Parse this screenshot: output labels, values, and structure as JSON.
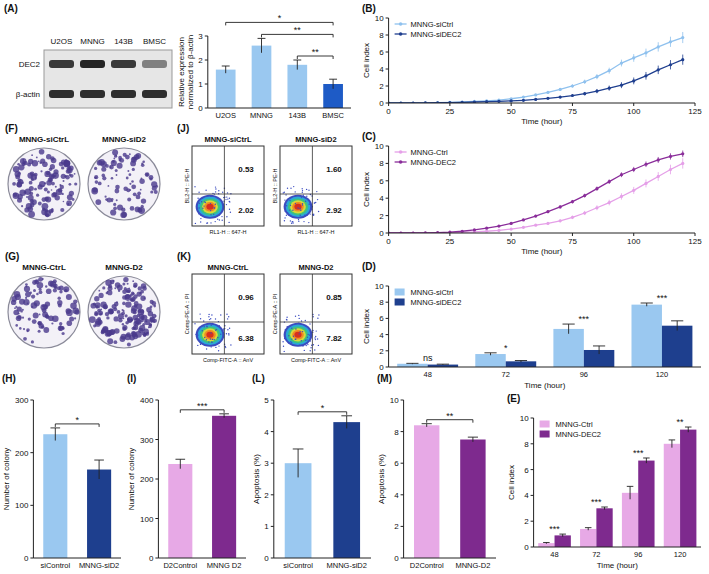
{
  "blot": {
    "panel": "(A)",
    "lanes": [
      "U2OS",
      "MNNG",
      "143B",
      "BMSC"
    ],
    "rows": [
      "DEC2",
      "β-actin"
    ]
  },
  "colony_images": [
    {
      "panel": "(F)",
      "labels": [
        "MNNG-siCtrL",
        "MNNG-siD2"
      ]
    },
    {
      "panel": "(G)",
      "labels": [
        "MNNG-CtrL",
        "MNNG-D2"
      ]
    }
  ],
  "flow_plots": [
    {
      "panel": "(J)",
      "x_label": "RL1-H :: 647-H",
      "y_label": "BL2-H :: PE-H",
      "plots": [
        {
          "title": "MNNG-siCtrL",
          "upper_right": "0.53",
          "lower_right": "2.02"
        },
        {
          "title": "MNNG-siD2",
          "upper_right": "1.60",
          "lower_right": "2.92"
        }
      ]
    },
    {
      "panel": "(K)",
      "x_label": "Comp-FITC-A :: AnV",
      "y_label": "Comp-PE-A :: PI",
      "plots": [
        {
          "title": "MNNG-CtrL",
          "upper_right": "0.96",
          "lower_right": "6.38"
        },
        {
          "title": "MNNG-D2",
          "upper_right": "0.85",
          "lower_right": "7.82"
        }
      ]
    }
  ],
  "chart_data": [
    {
      "type": "bar",
      "categories": [
        "U2OS",
        "MNNG",
        "143B",
        "BMSC"
      ],
      "values": [
        1.6,
        2.6,
        1.8,
        1.0
      ],
      "errors": [
        0.15,
        0.3,
        0.2,
        0.2
      ],
      "colors": [
        "#9ac8f0",
        "#9ac8f0",
        "#9ac8f0",
        "#1e5bc6"
      ],
      "y_label": "Relative expression normalized to β-actin",
      "ylim": [
        0,
        3
      ],
      "yticks": [
        0,
        1,
        2,
        3
      ],
      "grid": false,
      "annotations": [
        {
          "text": "*",
          "from": 0,
          "to": 3
        },
        {
          "text": "**",
          "from": 1,
          "to": 3
        },
        {
          "text": "**",
          "from": 2,
          "to": 3
        }
      ]
    },
    {
      "panel": "(B)",
      "type": "line",
      "x": [
        0,
        5,
        10,
        15,
        20,
        25,
        30,
        35,
        40,
        45,
        50,
        55,
        60,
        65,
        70,
        75,
        80,
        85,
        90,
        95,
        100,
        105,
        110,
        115,
        120
      ],
      "x_label": "Time (hour)",
      "y_label": "Cell index",
      "xlim": [
        0,
        125
      ],
      "xticks": [
        0,
        25,
        50,
        75,
        100,
        125
      ],
      "ylim": [
        0,
        10
      ],
      "yticks": [
        0,
        2,
        4,
        6,
        8,
        10
      ],
      "grid": false,
      "legend": "upper-left",
      "series": [
        {
          "name": "MNNG-siCtrl",
          "color": "#8fc1ee",
          "marker": "circle",
          "values": [
            0,
            0,
            0,
            0.02,
            0.05,
            0.08,
            0.12,
            0.18,
            0.25,
            0.35,
            0.5,
            0.7,
            0.95,
            1.25,
            1.6,
            2.0,
            2.5,
            3.1,
            3.8,
            4.7,
            5.3,
            5.9,
            6.6,
            7.2,
            7.7
          ],
          "errors": [
            0,
            0,
            0,
            0.01,
            0.02,
            0.03,
            0.04,
            0.05,
            0.06,
            0.07,
            0.08,
            0.1,
            0.12,
            0.14,
            0.16,
            0.2,
            0.25,
            0.3,
            0.35,
            0.4,
            0.45,
            0.5,
            0.55,
            0.6,
            0.65
          ]
        },
        {
          "name": "MNNG-siDEC2",
          "color": "#1f3f8f",
          "marker": "circle",
          "values": [
            0,
            0,
            0,
            0.01,
            0.03,
            0.05,
            0.08,
            0.12,
            0.16,
            0.2,
            0.25,
            0.32,
            0.42,
            0.55,
            0.7,
            0.88,
            1.1,
            1.4,
            1.75,
            2.1,
            2.6,
            3.2,
            3.9,
            4.5,
            5.1
          ],
          "errors": [
            0,
            0,
            0,
            0.01,
            0.01,
            0.02,
            0.03,
            0.04,
            0.05,
            0.06,
            0.07,
            0.08,
            0.1,
            0.12,
            0.14,
            0.16,
            0.2,
            0.25,
            0.3,
            0.35,
            0.4,
            0.45,
            0.5,
            0.55,
            0.6
          ]
        }
      ]
    },
    {
      "panel": "(C)",
      "type": "line",
      "x": [
        0,
        5,
        10,
        15,
        20,
        25,
        30,
        35,
        40,
        45,
        50,
        55,
        60,
        65,
        70,
        75,
        80,
        85,
        90,
        95,
        100,
        105,
        110,
        115,
        120
      ],
      "x_label": "Time (hour)",
      "y_label": "Cell index",
      "xlim": [
        0,
        125
      ],
      "xticks": [
        0,
        25,
        50,
        75,
        100,
        125
      ],
      "ylim": [
        0,
        10
      ],
      "yticks": [
        0,
        2,
        4,
        6,
        8,
        10
      ],
      "grid": false,
      "legend": "upper-left",
      "series": [
        {
          "name": "MNNG-Ctrl",
          "color": "#e5a0e8",
          "marker": "circle",
          "values": [
            0,
            0,
            0,
            0,
            0.02,
            0.05,
            0.08,
            0.12,
            0.2,
            0.3,
            0.45,
            0.65,
            0.9,
            1.1,
            1.4,
            1.8,
            2.3,
            2.9,
            3.5,
            4.2,
            4.9,
            5.7,
            6.5,
            7.3,
            8.0
          ],
          "errors": [
            0,
            0,
            0,
            0,
            0.01,
            0.02,
            0.03,
            0.04,
            0.05,
            0.06,
            0.08,
            0.1,
            0.12,
            0.14,
            0.16,
            0.2,
            0.24,
            0.28,
            0.32,
            0.36,
            0.4,
            0.45,
            0.5,
            0.55,
            0.6
          ]
        },
        {
          "name": "MNNG-DEC2",
          "color": "#8a2d9a",
          "marker": "circle",
          "values": [
            0,
            0,
            0,
            0.02,
            0.05,
            0.1,
            0.2,
            0.35,
            0.55,
            0.8,
            1.1,
            1.5,
            1.95,
            2.45,
            3.0,
            3.6,
            4.3,
            5.1,
            5.9,
            6.7,
            7.3,
            7.9,
            8.4,
            8.8,
            9.1
          ],
          "errors": [
            0,
            0,
            0,
            0.01,
            0.02,
            0.03,
            0.04,
            0.05,
            0.06,
            0.08,
            0.1,
            0.12,
            0.14,
            0.16,
            0.18,
            0.2,
            0.22,
            0.24,
            0.26,
            0.28,
            0.3,
            0.32,
            0.34,
            0.36,
            0.38
          ]
        }
      ]
    },
    {
      "panel": "(D)",
      "type": "bar",
      "categories": [
        "48",
        "72",
        "96",
        "120"
      ],
      "x_label": "Time (hour)",
      "y_label": "Cell index",
      "ylim": [
        0,
        10
      ],
      "yticks": [
        0,
        2,
        4,
        6,
        8,
        10
      ],
      "grid": false,
      "legend": "upper-left",
      "series": [
        {
          "name": "MNNG-siCtrl",
          "color": "#9ac8f0",
          "values": [
            0.4,
            1.6,
            4.7,
            7.7
          ],
          "errors": [
            0.05,
            0.15,
            0.6,
            0.2
          ]
        },
        {
          "name": "MNNG-siDEC2",
          "color": "#1e3f8e",
          "values": [
            0.3,
            0.7,
            2.1,
            5.1
          ],
          "errors": [
            0.05,
            0.1,
            0.5,
            0.6
          ]
        }
      ],
      "annotations": [
        {
          "text": "ns",
          "from": 0,
          "to": 0
        },
        {
          "text": "*",
          "from": 1,
          "to": 1
        },
        {
          "text": "***",
          "from": 2,
          "to": 2
        },
        {
          "text": "***",
          "from": 3,
          "to": 3
        }
      ]
    },
    {
      "panel": "(E)",
      "type": "bar",
      "categories": [
        "48",
        "72",
        "96",
        "120"
      ],
      "x_label": "Time (hour)",
      "y_label": "Cell index",
      "ylim": [
        0,
        10
      ],
      "yticks": [
        0,
        2,
        4,
        6,
        8,
        10
      ],
      "grid": false,
      "legend": "upper-left",
      "series": [
        {
          "name": "MNNG-Ctrl",
          "color": "#e7a9e6",
          "values": [
            0.3,
            1.4,
            4.2,
            8.0
          ],
          "errors": [
            0.05,
            0.1,
            0.5,
            0.3
          ]
        },
        {
          "name": "MNNG-DEC2",
          "color": "#7e2a8e",
          "values": [
            0.9,
            3.0,
            6.7,
            9.1
          ],
          "errors": [
            0.1,
            0.1,
            0.2,
            0.2
          ]
        }
      ],
      "annotations": [
        {
          "text": "***",
          "from": 0,
          "to": 0
        },
        {
          "text": "***",
          "from": 1,
          "to": 1
        },
        {
          "text": "***",
          "from": 2,
          "to": 2
        },
        {
          "text": "**",
          "from": 3,
          "to": 3
        }
      ]
    },
    {
      "panel": "(H)",
      "type": "bar",
      "categories": [
        "siControl",
        "MNNG-siD2"
      ],
      "values": [
        235,
        168
      ],
      "errors": [
        12,
        18
      ],
      "colors": [
        "#9ac8f0",
        "#1e3f8e"
      ],
      "y_label": "Number of colony",
      "ylim": [
        0,
        300
      ],
      "yticks": [
        0,
        100,
        200,
        300
      ],
      "grid": false,
      "annotations": [
        {
          "text": "*",
          "from": 0,
          "to": 1
        }
      ]
    },
    {
      "panel": "(I)",
      "type": "bar",
      "categories": [
        "D2Control",
        "MNNG D2"
      ],
      "values": [
        238,
        360
      ],
      "errors": [
        12,
        5
      ],
      "colors": [
        "#e7a9e6",
        "#7e2a8e"
      ],
      "y_label": "Number of colony",
      "ylim": [
        0,
        400
      ],
      "yticks": [
        0,
        100,
        200,
        300,
        400
      ],
      "grid": false,
      "annotations": [
        {
          "text": "***",
          "from": 0,
          "to": 1
        }
      ]
    },
    {
      "panel": "(L)",
      "type": "bar",
      "categories": [
        "siControl",
        "MNNG-siD2"
      ],
      "values": [
        3.0,
        4.3
      ],
      "errors": [
        0.45,
        0.2
      ],
      "colors": [
        "#9ac8f0",
        "#1e3f8e"
      ],
      "y_label": "Apoptosis (%)",
      "ylim": [
        0,
        5
      ],
      "yticks": [
        0,
        1,
        2,
        3,
        4,
        5
      ],
      "grid": false,
      "annotations": [
        {
          "text": "*",
          "from": 0,
          "to": 1
        }
      ]
    },
    {
      "panel": "(M)",
      "type": "bar",
      "categories": [
        "D2Control",
        "MNNG-D2"
      ],
      "values": [
        8.4,
        7.5
      ],
      "errors": [
        0.1,
        0.15
      ],
      "colors": [
        "#e7a9e6",
        "#7e2a8e"
      ],
      "y_label": "Apoptosis (%)",
      "ylim": [
        0,
        10
      ],
      "yticks": [
        0,
        2,
        4,
        6,
        8,
        10
      ],
      "grid": false,
      "annotations": [
        {
          "text": "**",
          "from": 0,
          "to": 1
        }
      ]
    }
  ]
}
